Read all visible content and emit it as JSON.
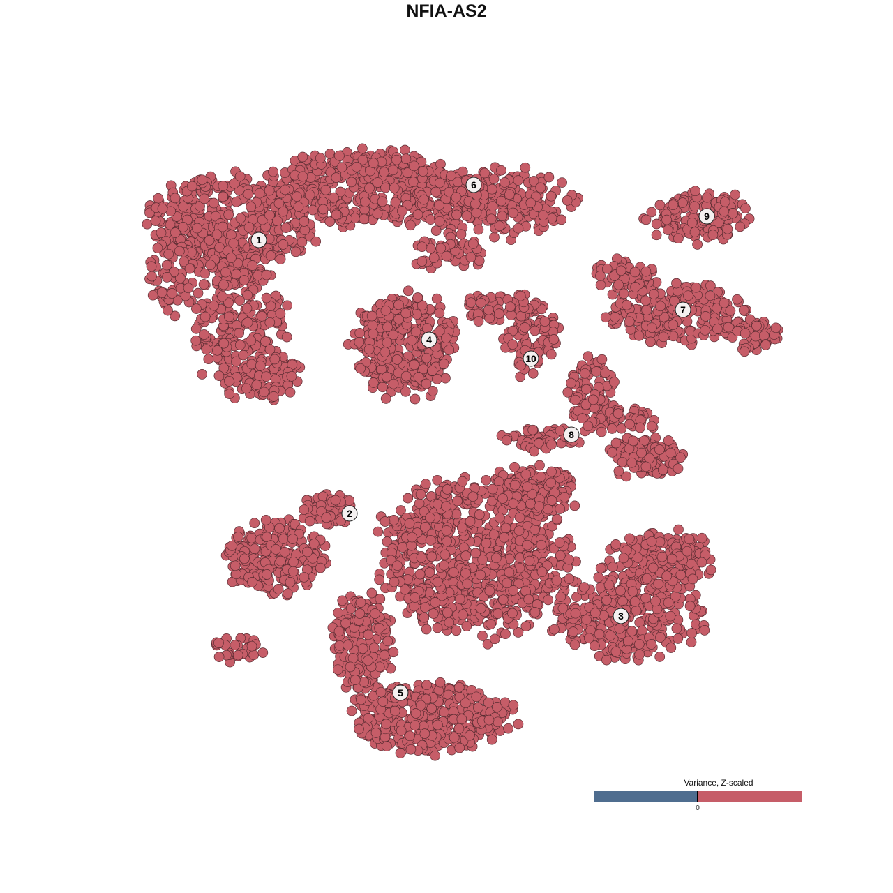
{
  "chart_data": {
    "type": "scatter",
    "title": "NFIA-AS2",
    "xlabel": "",
    "ylabel": "",
    "grid": false,
    "point_color": "#C65D68",
    "point_stroke": "#5a2c32",
    "clusters": [
      {
        "label": "1"
      },
      {
        "label": "2"
      },
      {
        "label": "3"
      },
      {
        "label": "4"
      },
      {
        "label": "5"
      },
      {
        "label": "6"
      },
      {
        "label": "7"
      },
      {
        "label": "8"
      },
      {
        "label": "9"
      },
      {
        "label": "10"
      }
    ],
    "legend": {
      "title": "Variance, Z-scaled",
      "placement": "bottom-right",
      "low_color": "#4F6D8F",
      "high_color": "#C65D68",
      "tick_label": "0"
    }
  }
}
